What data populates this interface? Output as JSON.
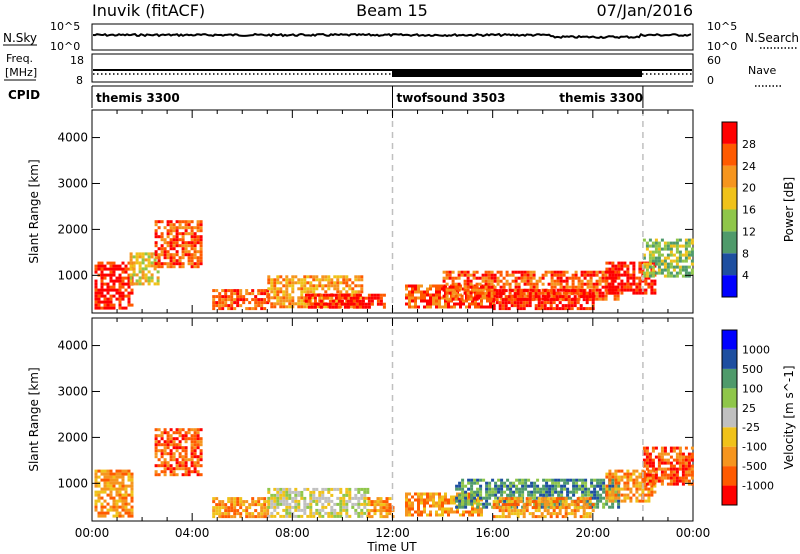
{
  "header": {
    "station": "Inuvik (fitACF)",
    "beam": "Beam 15",
    "date": "07/Jan/2016"
  },
  "side_labels": {
    "nsky": "N.Sky",
    "nsearch": "N.Search",
    "freq": "Freq.",
    "freq_unit": "[MHz]",
    "nave": "Nave",
    "cpid": "CPID"
  },
  "strip_ticks": {
    "noise_left": [
      "10^5",
      "10^0"
    ],
    "noise_right": [
      "10^5",
      "10^0"
    ],
    "freq_left": [
      "18",
      "8"
    ],
    "nave_right": [
      "60",
      "0"
    ]
  },
  "cpid_segments": [
    {
      "label": "themis 3300",
      "start": 0,
      "end": 12
    },
    {
      "label": "twofsound 3503",
      "start": 12,
      "end": 22
    },
    {
      "label": "themis 3300",
      "start": 22,
      "end": 24
    }
  ],
  "colors": {
    "power": [
      "#0000ff",
      "#1e4fa0",
      "#4f9a6b",
      "#8fc64a",
      "#f0c21a",
      "#f6951e",
      "#ff5a00",
      "#ff0000"
    ],
    "velocity": [
      "#ff0000",
      "#ff5a00",
      "#f6951e",
      "#f0c21a",
      "#c0c0c0",
      "#8fc64a",
      "#4f9a6b",
      "#1e4fa0",
      "#0000ff"
    ]
  },
  "chart_data": [
    {
      "type": "heatmap",
      "name": "power",
      "ylabel": "Slant Range [km]",
      "xlabel": "",
      "colorbar_label": "Power [dB]",
      "colorbar_ticks": [
        "4",
        "8",
        "12",
        "16",
        "20",
        "24",
        "28"
      ],
      "ylim": [
        180,
        4600
      ],
      "xlim": [
        0,
        24
      ],
      "y_ticks": [
        1000,
        2000,
        3000,
        4000
      ],
      "x_ticks": [
        0,
        4,
        8,
        12,
        16,
        20,
        24
      ],
      "echo_regions": [
        {
          "t0": 0.1,
          "t1": 1.6,
          "r0": 300,
          "r1": 1300,
          "level": 7
        },
        {
          "t0": 1.5,
          "t1": 2.6,
          "r0": 800,
          "r1": 1500,
          "level": 4
        },
        {
          "t0": 2.5,
          "t1": 4.4,
          "r0": 1200,
          "r1": 2200,
          "level": 6
        },
        {
          "t0": 4.8,
          "t1": 7.0,
          "r0": 300,
          "r1": 700,
          "level": 6
        },
        {
          "t0": 7.0,
          "t1": 10.8,
          "r0": 300,
          "r1": 1000,
          "level": 5
        },
        {
          "t0": 8.5,
          "t1": 11.7,
          "r0": 300,
          "r1": 600,
          "level": 7
        },
        {
          "t0": 12.5,
          "t1": 16.0,
          "r0": 300,
          "r1": 800,
          "level": 6
        },
        {
          "t0": 14.0,
          "t1": 21.0,
          "r0": 500,
          "r1": 1100,
          "level": 6
        },
        {
          "t0": 16.0,
          "t1": 20.0,
          "r0": 300,
          "r1": 700,
          "level": 7
        },
        {
          "t0": 20.5,
          "t1": 22.5,
          "r0": 600,
          "r1": 1300,
          "level": 7
        },
        {
          "t0": 22.0,
          "t1": 24.0,
          "r0": 1000,
          "r1": 1800,
          "level": 3
        }
      ]
    },
    {
      "type": "heatmap",
      "name": "velocity",
      "ylabel": "Slant Range [km]",
      "xlabel": "Time UT",
      "colorbar_label": "Velocity [m s^-1]",
      "colorbar_ticks": [
        "-1000",
        "-500",
        "-100",
        "-25",
        "25",
        "100",
        "500",
        "1000"
      ],
      "ylim": [
        180,
        4600
      ],
      "xlim": [
        0,
        24
      ],
      "y_ticks": [
        1000,
        2000,
        3000,
        4000
      ],
      "x_ticks": [
        "00:00",
        "04:00",
        "08:00",
        "12:00",
        "16:00",
        "20:00",
        "00:00"
      ],
      "echo_regions": [
        {
          "t0": 0.1,
          "t1": 1.6,
          "r0": 300,
          "r1": 1300,
          "level": 2
        },
        {
          "t0": 2.5,
          "t1": 4.4,
          "r0": 1200,
          "r1": 2200,
          "level": 1
        },
        {
          "t0": 4.8,
          "t1": 7.0,
          "r0": 300,
          "r1": 700,
          "level": 2
        },
        {
          "t0": 7.0,
          "t1": 11.0,
          "r0": 300,
          "r1": 900,
          "level": 4
        },
        {
          "t0": 11.0,
          "t1": 12.0,
          "r0": 300,
          "r1": 700,
          "level": 2
        },
        {
          "t0": 12.5,
          "t1": 15.5,
          "r0": 300,
          "r1": 800,
          "level": 2
        },
        {
          "t0": 14.5,
          "t1": 21.0,
          "r0": 500,
          "r1": 1100,
          "level": 6
        },
        {
          "t0": 16.0,
          "t1": 20.0,
          "r0": 300,
          "r1": 700,
          "level": 2
        },
        {
          "t0": 20.5,
          "t1": 22.5,
          "r0": 600,
          "r1": 1300,
          "level": 2
        },
        {
          "t0": 22.0,
          "t1": 24.0,
          "r0": 1000,
          "r1": 1800,
          "level": 1
        }
      ]
    }
  ]
}
